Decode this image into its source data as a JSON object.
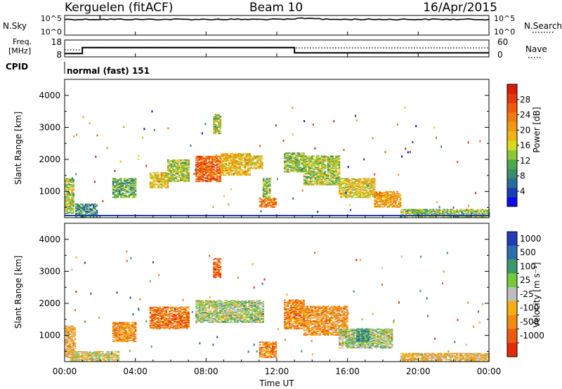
{
  "header": {
    "station": "Kerguelen (fitACF)",
    "beam": "Beam 10",
    "date": "16/Apr/2015"
  },
  "noise_panel": {
    "left_label": "N.Sky",
    "right_label": "N.Search",
    "left_ticks": [
      "10^5",
      "10^0"
    ],
    "right_ticks": [
      "10^5",
      "10^0"
    ],
    "line_level": 0.8
  },
  "freq_panel": {
    "left_label_line1": "Freq.",
    "left_label_line2": "[MHz]",
    "right_label": "Nave",
    "left_ticks": [
      18,
      8
    ],
    "right_ticks": [
      60,
      0
    ],
    "cpid_label": "CPID",
    "program_text": "normal (fast) 151",
    "freq_steps": [
      {
        "start": 0.0,
        "end": 1.0,
        "value": 10.0
      },
      {
        "start": 1.0,
        "end": 13.0,
        "value": 13.5
      },
      {
        "start": 13.0,
        "end": 24.0,
        "value": 10.4
      }
    ],
    "nave_steps": [
      {
        "start": 0.0,
        "end": 1.0,
        "value": 25
      },
      {
        "start": 1.0,
        "end": 24.0,
        "value": 32
      }
    ]
  },
  "chart_data": [
    {
      "type": "heatmap",
      "name": "power",
      "ylabel": "Slant Range [km]",
      "yticks": [
        1000,
        2000,
        3000,
        4000
      ],
      "ylim": [
        180,
        4500
      ],
      "xlim": [
        0,
        24
      ],
      "colorbar": {
        "label": "Power [dB]",
        "ticks": [
          4,
          8,
          12,
          16,
          20,
          24,
          28
        ],
        "range": [
          0,
          32
        ],
        "colors": [
          "#0b0bf2",
          "#1a3fb4",
          "#276f9a",
          "#3b8c6b",
          "#4fa84a",
          "#8dc43a",
          "#d8d81e",
          "#f0b414",
          "#f59a0f",
          "#f27b0c",
          "#ef5a0a",
          "#e63808",
          "#d91c0a"
        ]
      },
      "regions": [
        {
          "x0": 0.0,
          "x1": 0.5,
          "r0": 300,
          "r1": 1400,
          "level": 0.45
        },
        {
          "x0": 0.6,
          "x1": 1.8,
          "r0": 200,
          "r1": 600,
          "level": 0.25
        },
        {
          "x0": 2.7,
          "x1": 4.0,
          "r0": 800,
          "r1": 1400,
          "level": 0.35
        },
        {
          "x0": 4.8,
          "x1": 5.8,
          "r0": 1100,
          "r1": 1600,
          "level": 0.55
        },
        {
          "x0": 5.8,
          "x1": 7.0,
          "r0": 1300,
          "r1": 2000,
          "level": 0.45
        },
        {
          "x0": 7.4,
          "x1": 8.8,
          "r0": 1300,
          "r1": 2100,
          "level": 0.8
        },
        {
          "x0": 8.8,
          "x1": 10.5,
          "r0": 1500,
          "r1": 2200,
          "level": 0.6
        },
        {
          "x0": 10.5,
          "x1": 11.2,
          "r0": 1700,
          "r1": 2100,
          "level": 0.55
        },
        {
          "x0": 11.0,
          "x1": 11.9,
          "r0": 500,
          "r1": 800,
          "level": 0.75
        },
        {
          "x0": 11.2,
          "x1": 11.6,
          "r0": 800,
          "r1": 1400,
          "level": 0.4
        },
        {
          "x0": 12.4,
          "x1": 13.5,
          "r0": 1600,
          "r1": 2200,
          "level": 0.4
        },
        {
          "x0": 13.5,
          "x1": 15.5,
          "r0": 1200,
          "r1": 2100,
          "level": 0.45
        },
        {
          "x0": 15.5,
          "x1": 17.5,
          "r0": 800,
          "r1": 1400,
          "level": 0.55
        },
        {
          "x0": 17.5,
          "x1": 19.0,
          "r0": 500,
          "r1": 1000,
          "level": 0.65
        },
        {
          "x0": 19.0,
          "x1": 24.0,
          "r0": 200,
          "r1": 450,
          "level": 0.4
        },
        {
          "x0": 8.4,
          "x1": 8.8,
          "r0": 2800,
          "r1": 3400,
          "level": 0.45
        }
      ]
    },
    {
      "type": "heatmap",
      "name": "velocity",
      "ylabel": "Slant Range [km]",
      "yticks": [
        1000,
        2000,
        3000,
        4000
      ],
      "ylim": [
        180,
        4500
      ],
      "xlim": [
        0,
        24
      ],
      "colorbar": {
        "label": "Velocity [m s⁻¹]",
        "ticks": [
          "1000",
          "500",
          "100",
          "25",
          "-25",
          "-100",
          "-500",
          "-1000"
        ],
        "colors": [
          "#1f3db8",
          "#2b6ea8",
          "#3a9a6e",
          "#74c83a",
          "#bdbdbd",
          "#f5b00f",
          "#f28a0b",
          "#ef5a0a",
          "#e52a08"
        ]
      },
      "regions": [
        {
          "x0": 0.0,
          "x1": 0.6,
          "r0": 300,
          "r1": 1300,
          "level": 0.62
        },
        {
          "x0": 0.3,
          "x1": 3.0,
          "r0": 200,
          "r1": 500,
          "level": 0.55
        },
        {
          "x0": 2.7,
          "x1": 4.0,
          "r0": 800,
          "r1": 1400,
          "level": 0.72
        },
        {
          "x0": 4.8,
          "x1": 7.0,
          "r0": 1200,
          "r1": 1900,
          "level": 0.78
        },
        {
          "x0": 7.4,
          "x1": 11.2,
          "r0": 1400,
          "r1": 2100,
          "level": 0.45
        },
        {
          "x0": 11.0,
          "x1": 11.9,
          "r0": 300,
          "r1": 800,
          "level": 0.72
        },
        {
          "x0": 12.4,
          "x1": 13.5,
          "r0": 1200,
          "r1": 2100,
          "level": 0.75
        },
        {
          "x0": 13.5,
          "x1": 16.0,
          "r0": 1000,
          "r1": 1900,
          "level": 0.7
        },
        {
          "x0": 15.5,
          "x1": 18.5,
          "r0": 600,
          "r1": 1200,
          "level": 0.45
        },
        {
          "x0": 16.5,
          "x1": 17.2,
          "r0": 800,
          "r1": 1200,
          "level": 0.25
        },
        {
          "x0": 19.0,
          "x1": 24.0,
          "r0": 200,
          "r1": 450,
          "level": 0.6
        },
        {
          "x0": 8.4,
          "x1": 8.8,
          "r0": 2800,
          "r1": 3400,
          "level": 0.82
        }
      ]
    }
  ],
  "xaxis": {
    "label": "Time UT",
    "ticks": [
      {
        "value": 0,
        "label": "00:00"
      },
      {
        "value": 4,
        "label": "04:00"
      },
      {
        "value": 8,
        "label": "08:00"
      },
      {
        "value": 12,
        "label": "12:00"
      },
      {
        "value": 16,
        "label": "16:00"
      },
      {
        "value": 20,
        "label": "20:00"
      },
      {
        "value": 24,
        "label": "00:00"
      }
    ]
  }
}
